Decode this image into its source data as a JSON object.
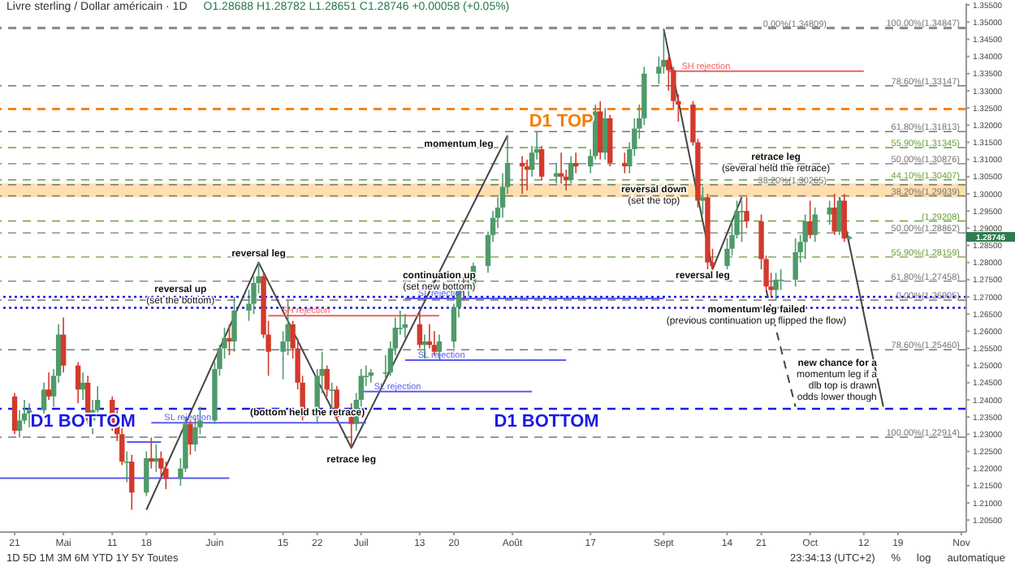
{
  "chart_data": {
    "type": "candlestick",
    "title": "Livre sterling / Dollar américain · 1D",
    "subtitle": "O1.28688 H1.28782 L1.28651 C1.28746 +0.00058 (+0.05%)",
    "colors": [
      "#d23a2c",
      "#4f9a6a",
      "#4f9a6a",
      "#4f9a6a",
      "#4f9a6a",
      "#d23a2c",
      "#4f9a6a",
      "#4f9a6a",
      "#d23a2c",
      "#d23a2c",
      "#4f9a6a",
      "#d23a2c",
      "#4f9a6a",
      "#4f9a6a",
      "#d23a2c",
      "#d23a2c",
      "#d23a2c",
      "#4f9a6a",
      "#d23a2c",
      "#4f9a6a",
      "#d23a2c",
      "#4f9a6a",
      "#d23a2c",
      "#d23a2c",
      "#4f9a6a",
      "#4f9a6a",
      "#d23a2c",
      "#4f9a6a",
      "#4f9a6a",
      "#4f9a6a",
      "#4f9a6a",
      "#4f9a6a",
      "#d23a2c",
      "#4f9a6a",
      "#4f9a6a",
      "#4f9a6a",
      "#4f9a6a",
      "#d23a2c",
      "#d23a2c",
      "#4f9a6a",
      "#4f9a6a",
      "#d23a2c",
      "#d23a2c",
      "#d23a2c",
      "#4f9a6a",
      "#4f9a6a",
      "#d23a2c",
      "#4f9a6a",
      "#d23a2c",
      "#d23a2c",
      "#4f9a6a",
      "#4f9a6a",
      "#4f9a6a",
      "#4f9a6a",
      "#4f9a6a",
      "#4f9a6a",
      "#4f9a6a",
      "#4f9a6a",
      "#4f9a6a",
      "#d23a2c",
      "#4f9a6a",
      "#d23a2c",
      "#d23a2c",
      "#4f9a6a",
      "#4f9a6a",
      "#4f9a6a",
      "#d23a2c",
      "#4f9a6a",
      "#4f9a6a",
      "#4f9a6a",
      "#4f9a6a",
      "#4f9a6a",
      "#4f9a6a",
      "#4f9a6a",
      "#d23a2c",
      "#d23a2c",
      "#4f9a6a",
      "#4f9a6a",
      "#d23a2c",
      "#4f9a6a",
      "#d23a2c",
      "#d23a2c",
      "#4f9a6a",
      "#d23a2c",
      "#4f9a6a",
      "#4f9a6a",
      "#d23a2c",
      "#4f9a6a",
      "#d23a2c",
      "#d23a2c",
      "#4f9a6a",
      "#4f9a6a",
      "#4f9a6a",
      "#4f9a6a",
      "#4f9a6a",
      "#4f9a6a",
      "#d23a2c",
      "#d23a2c",
      "#d23a2c",
      "#d23a2c",
      "#d23a2c",
      "#4f9a6a",
      "#d23a2c",
      "#d23a2c",
      "#4f9a6a",
      "#4f9a6a",
      "#4f9a6a",
      "#4f9a6a",
      "#d23a2c",
      "#d23a2c",
      "#d23a2c",
      "#d23a2c",
      "#4f9a6a",
      "#4f9a6a",
      "#4f9a6a",
      "#4f9a6a",
      "#4f9a6a",
      "#d23a2c",
      "#4f9a6a",
      "#4f9a6a",
      "#d23a2c",
      "#4f9a6a",
      "#d23a2c",
      "#4f9a6a"
    ],
    "xlim": [
      "--04-18",
      "--11-02"
    ],
    "xticks": [
      {
        "value": "--04-21",
        "label": "21"
      },
      {
        "value": "--05-01",
        "label": "Mai"
      },
      {
        "value": "--05-11",
        "label": "11"
      },
      {
        "value": "--05-18",
        "label": "18"
      },
      {
        "value": "--06-01",
        "label": "Juin"
      },
      {
        "value": "--06-15",
        "label": "15"
      },
      {
        "value": "--06-22",
        "label": "22"
      },
      {
        "value": "--07-01",
        "label": "Juil"
      },
      {
        "value": "--07-13",
        "label": "13"
      },
      {
        "value": "--07-20",
        "label": "20"
      },
      {
        "value": "--08-01",
        "label": "Août"
      },
      {
        "value": "--08-17",
        "label": "17"
      },
      {
        "value": "--09-01",
        "label": "Sept"
      },
      {
        "value": "--09-14",
        "label": "14"
      },
      {
        "value": "--09-21",
        "label": "21"
      },
      {
        "value": "--10-01",
        "label": "Oct"
      },
      {
        "value": "--10-12",
        "label": "12"
      },
      {
        "value": "--10-19",
        "label": "19"
      },
      {
        "value": "--11-01",
        "label": "Nov"
      }
    ],
    "ylim": [
      1.2015,
      1.3555
    ],
    "yticks": [
      {
        "value": 1.205,
        "label": "1.20500"
      },
      {
        "value": 1.21,
        "label": "1.21000"
      },
      {
        "value": 1.215,
        "label": "1.21500"
      },
      {
        "value": 1.22,
        "label": "1.22000"
      },
      {
        "value": 1.225,
        "label": "1.22500"
      },
      {
        "value": 1.23,
        "label": "1.23000"
      },
      {
        "value": 1.235,
        "label": "1.23500"
      },
      {
        "value": 1.24,
        "label": "1.24000"
      },
      {
        "value": 1.245,
        "label": "1.24500"
      },
      {
        "value": 1.25,
        "label": "1.25000"
      },
      {
        "value": 1.255,
        "label": "1.25500"
      },
      {
        "value": 1.26,
        "label": "1.26000"
      },
      {
        "value": 1.265,
        "label": "1.26500"
      },
      {
        "value": 1.27,
        "label": "1.27000"
      },
      {
        "value": 1.275,
        "label": "1.27500"
      },
      {
        "value": 1.28,
        "label": "1.28000"
      },
      {
        "value": 1.285,
        "label": "1.28500"
      },
      {
        "value": 1.29,
        "label": "1.29000"
      },
      {
        "value": 1.295,
        "label": "1.29500"
      },
      {
        "value": 1.3,
        "label": "1.30000"
      },
      {
        "value": 1.305,
        "label": "1.30500"
      },
      {
        "value": 1.31,
        "label": "1.31000"
      },
      {
        "value": 1.315,
        "label": "1.31500"
      },
      {
        "value": 1.32,
        "label": "1.32000"
      },
      {
        "value": 1.325,
        "label": "1.32500"
      },
      {
        "value": 1.33,
        "label": "1.33000"
      },
      {
        "value": 1.335,
        "label": "1.33500"
      },
      {
        "value": 1.34,
        "label": "1.34000"
      },
      {
        "value": 1.345,
        "label": "1.34500"
      },
      {
        "value": 1.35,
        "label": "1.35000"
      },
      {
        "value": 1.355,
        "label": "1.35500"
      }
    ],
    "x": [
      "--04-21",
      "--04-22",
      "--04-23",
      "--04-24",
      "--04-27",
      "--04-28",
      "--04-29",
      "--04-30",
      "--05-01",
      "--05-04",
      "--05-05",
      "--05-06",
      "--05-07",
      "--05-08",
      "--05-11",
      "--05-12",
      "--05-13",
      "--05-14",
      "--05-15",
      "--05-18",
      "--05-19",
      "--05-20",
      "--05-21",
      "--05-22",
      "--05-25",
      "--05-26",
      "--05-27",
      "--05-28",
      "--05-29",
      "--06-01",
      "--06-02",
      "--06-03",
      "--06-04",
      "--06-05",
      "--06-08",
      "--06-09",
      "--06-10",
      "--06-11",
      "--06-12",
      "--06-15",
      "--06-16",
      "--06-17",
      "--06-18",
      "--06-19",
      "--06-22",
      "--06-23",
      "--06-24",
      "--06-25",
      "--06-26",
      "--06-29",
      "--06-30",
      "--07-01",
      "--07-02",
      "--07-03",
      "--07-06",
      "--07-07",
      "--07-08",
      "--07-09",
      "--07-10",
      "--07-13",
      "--07-14",
      "--07-15",
      "--07-16",
      "--07-17",
      "--07-20",
      "--07-21",
      "--07-22",
      "--07-23",
      "--07-24",
      "--07-27",
      "--07-28",
      "--07-29",
      "--07-30",
      "--07-31",
      "--08-03",
      "--08-04",
      "--08-05",
      "--08-06",
      "--08-07",
      "--08-10",
      "--08-11",
      "--08-12",
      "--08-13",
      "--08-14",
      "--08-17",
      "--08-18",
      "--08-19",
      "--08-20",
      "--08-21",
      "--08-24",
      "--08-25",
      "--08-26",
      "--08-27",
      "--08-28",
      "--08-31",
      "--09-01",
      "--09-02",
      "--09-03",
      "--09-04",
      "--09-07",
      "--09-08",
      "--09-09",
      "--09-10",
      "--09-11",
      "--09-14",
      "--09-15",
      "--09-16",
      "--09-17",
      "--09-18",
      "--09-21",
      "--09-22",
      "--09-23",
      "--09-24",
      "--09-25",
      "--09-28",
      "--09-29",
      "--09-30",
      "--10-01",
      "--10-02",
      "--10-05",
      "--10-06",
      "--10-07",
      "--10-08",
      "--10-09"
    ],
    "ohlc": [
      [
        1.241,
        1.242,
        1.23,
        1.231
      ],
      [
        1.231,
        1.237,
        1.229,
        1.234
      ],
      [
        1.234,
        1.24,
        1.233,
        1.236
      ],
      [
        1.236,
        1.239,
        1.232,
        1.237
      ],
      [
        1.237,
        1.245,
        1.236,
        1.243
      ],
      [
        1.243,
        1.248,
        1.24,
        1.241
      ],
      [
        1.241,
        1.249,
        1.238,
        1.247
      ],
      [
        1.247,
        1.262,
        1.245,
        1.259
      ],
      [
        1.259,
        1.264,
        1.248,
        1.25
      ],
      [
        1.25,
        1.251,
        1.239,
        1.243
      ],
      [
        1.243,
        1.248,
        1.24,
        1.245
      ],
      [
        1.245,
        1.247,
        1.233,
        1.234
      ],
      [
        1.234,
        1.24,
        1.23,
        1.237
      ],
      [
        1.237,
        1.244,
        1.235,
        1.24
      ],
      [
        1.24,
        1.241,
        1.231,
        1.233
      ],
      [
        1.233,
        1.237,
        1.228,
        1.23
      ],
      [
        1.23,
        1.232,
        1.221,
        1.222
      ],
      [
        1.222,
        1.225,
        1.216,
        1.222
      ],
      [
        1.222,
        1.224,
        1.208,
        1.213
      ],
      [
        1.213,
        1.225,
        1.212,
        1.223
      ],
      [
        1.223,
        1.229,
        1.22,
        1.222
      ],
      [
        1.222,
        1.227,
        1.219,
        1.223
      ],
      [
        1.223,
        1.225,
        1.217,
        1.22
      ],
      [
        1.22,
        1.222,
        1.214,
        1.217
      ],
      [
        1.217,
        1.223,
        1.215,
        1.22
      ],
      [
        1.22,
        1.235,
        1.219,
        1.233
      ],
      [
        1.233,
        1.234,
        1.224,
        1.227
      ],
      [
        1.227,
        1.235,
        1.225,
        1.232
      ],
      [
        1.232,
        1.238,
        1.23,
        1.234
      ],
      [
        1.234,
        1.251,
        1.233,
        1.249
      ],
      [
        1.249,
        1.256,
        1.247,
        1.255
      ],
      [
        1.255,
        1.261,
        1.252,
        1.258
      ],
      [
        1.258,
        1.262,
        1.253,
        1.257
      ],
      [
        1.257,
        1.27,
        1.254,
        1.266
      ],
      [
        1.266,
        1.272,
        1.263,
        1.268
      ],
      [
        1.268,
        1.276,
        1.265,
        1.274
      ],
      [
        1.274,
        1.28,
        1.271,
        1.276
      ],
      [
        1.276,
        1.277,
        1.258,
        1.259
      ],
      [
        1.259,
        1.263,
        1.247,
        1.254
      ],
      [
        1.254,
        1.26,
        1.246,
        1.257
      ],
      [
        1.257,
        1.269,
        1.253,
        1.262
      ],
      [
        1.262,
        1.263,
        1.252,
        1.255
      ],
      [
        1.255,
        1.258,
        1.243,
        1.245
      ],
      [
        1.245,
        1.247,
        1.234,
        1.235
      ],
      [
        1.235,
        1.249,
        1.233,
        1.247
      ],
      [
        1.247,
        1.254,
        1.242,
        1.249
      ],
      [
        1.249,
        1.25,
        1.241,
        1.243
      ],
      [
        1.243,
        1.245,
        1.237,
        1.243
      ],
      [
        1.243,
        1.244,
        1.234,
        1.235
      ],
      [
        1.235,
        1.239,
        1.226,
        1.233
      ],
      [
        1.233,
        1.242,
        1.231,
        1.24
      ],
      [
        1.24,
        1.249,
        1.238,
        1.247
      ],
      [
        1.247,
        1.25,
        1.244,
        1.247
      ],
      [
        1.247,
        1.249,
        1.245,
        1.248
      ],
      [
        1.248,
        1.253,
        1.246,
        1.248
      ],
      [
        1.248,
        1.257,
        1.247,
        1.255
      ],
      [
        1.255,
        1.264,
        1.253,
        1.261
      ],
      [
        1.261,
        1.266,
        1.259,
        1.261
      ],
      [
        1.261,
        1.265,
        1.258,
        1.262
      ],
      [
        1.262,
        1.266,
        1.255,
        1.256
      ],
      [
        1.256,
        1.259,
        1.252,
        1.257
      ],
      [
        1.257,
        1.262,
        1.255,
        1.256
      ],
      [
        1.256,
        1.26,
        1.253,
        1.254
      ],
      [
        1.254,
        1.259,
        1.252,
        1.257
      ],
      [
        1.257,
        1.268,
        1.255,
        1.267
      ],
      [
        1.267,
        1.275,
        1.264,
        1.273
      ],
      [
        1.273,
        1.276,
        1.269,
        1.272
      ],
      [
        1.272,
        1.277,
        1.27,
        1.273
      ],
      [
        1.273,
        1.28,
        1.272,
        1.279
      ],
      [
        1.279,
        1.289,
        1.277,
        1.288
      ],
      [
        1.288,
        1.295,
        1.286,
        1.293
      ],
      [
        1.293,
        1.299,
        1.29,
        1.296
      ],
      [
        1.296,
        1.306,
        1.293,
        1.302
      ],
      [
        1.302,
        1.317,
        1.3,
        1.309
      ],
      [
        1.309,
        1.311,
        1.3,
        1.308
      ],
      [
        1.308,
        1.31,
        1.301,
        1.307
      ],
      [
        1.307,
        1.314,
        1.305,
        1.312
      ],
      [
        1.312,
        1.318,
        1.31,
        1.313
      ],
      [
        1.313,
        1.314,
        1.304,
        1.305
      ],
      [
        1.305,
        1.309,
        1.303,
        1.306
      ],
      [
        1.306,
        1.312,
        1.303,
        1.305
      ],
      [
        1.305,
        1.307,
        1.301,
        1.304
      ],
      [
        1.304,
        1.311,
        1.303,
        1.309
      ],
      [
        1.309,
        1.312,
        1.306,
        1.308
      ],
      [
        1.308,
        1.313,
        1.306,
        1.311
      ],
      [
        1.311,
        1.326,
        1.31,
        1.324
      ],
      [
        1.324,
        1.327,
        1.31,
        1.312
      ],
      [
        1.312,
        1.325,
        1.31,
        1.322
      ],
      [
        1.322,
        1.323,
        1.308,
        1.309
      ],
      [
        1.309,
        1.312,
        1.306,
        1.308
      ],
      [
        1.308,
        1.315,
        1.306,
        1.313
      ],
      [
        1.313,
        1.322,
        1.311,
        1.319
      ],
      [
        1.319,
        1.326,
        1.316,
        1.322
      ],
      [
        1.322,
        1.337,
        1.32,
        1.335
      ],
      [
        1.335,
        1.34,
        1.332,
        1.337
      ],
      [
        1.337,
        1.348,
        1.335,
        1.339
      ],
      [
        1.339,
        1.34,
        1.33,
        1.336
      ],
      [
        1.336,
        1.337,
        1.325,
        1.327
      ],
      [
        1.327,
        1.329,
        1.321,
        1.326
      ],
      [
        1.326,
        1.327,
        1.314,
        1.315
      ],
      [
        1.315,
        1.316,
        1.296,
        1.298
      ],
      [
        1.298,
        1.302,
        1.294,
        1.299
      ],
      [
        1.299,
        1.3,
        1.278,
        1.28
      ],
      [
        1.28,
        1.284,
        1.277,
        1.279
      ],
      [
        1.279,
        1.287,
        1.278,
        1.284
      ],
      [
        1.284,
        1.292,
        1.282,
        1.288
      ],
      [
        1.288,
        1.298,
        1.287,
        1.295
      ],
      [
        1.295,
        1.298,
        1.286,
        1.295
      ],
      [
        1.295,
        1.299,
        1.29,
        1.292
      ],
      [
        1.292,
        1.294,
        1.278,
        1.281
      ],
      [
        1.281,
        1.282,
        1.272,
        1.273
      ],
      [
        1.273,
        1.277,
        1.27,
        1.272
      ],
      [
        1.272,
        1.277,
        1.269,
        1.275
      ],
      [
        1.275,
        1.278,
        1.272,
        1.275
      ],
      [
        1.275,
        1.287,
        1.273,
        1.283
      ],
      [
        1.283,
        1.288,
        1.28,
        1.286
      ],
      [
        1.286,
        1.294,
        1.281,
        1.292
      ],
      [
        1.292,
        1.298,
        1.287,
        1.288
      ],
      [
        1.288,
        1.296,
        1.286,
        1.294
      ],
      [
        1.294,
        1.298,
        1.291,
        1.296
      ],
      [
        1.296,
        1.3,
        1.288,
        1.289
      ],
      [
        1.289,
        1.299,
        1.288,
        1.298
      ],
      [
        1.298,
        1.3,
        1.286,
        1.287
      ],
      [
        1.28688,
        1.28782,
        1.28651,
        1.28746
      ]
    ],
    "series": [
      {
        "type": "line",
        "color": "#444444",
        "x": [
          "--05-18",
          "--06-10",
          "--06-29",
          "--07-31"
        ],
        "values": [
          1.208,
          1.28,
          1.226,
          1.317
        ]
      },
      {
        "type": "line",
        "color": "#444444",
        "x": [
          "--09-01",
          "--09-11",
          "--09-17"
        ],
        "values": [
          1.3481,
          1.278,
          1.299
        ]
      },
      {
        "type": "line",
        "color": "#444444",
        "line_style": "dashed",
        "x": [
          "--09-22",
          "--09-28"
        ],
        "values": [
          1.272,
          1.238
        ]
      },
      {
        "type": "line",
        "color": "#444444",
        "x": [
          "--10-07",
          "--10-16"
        ],
        "values": [
          1.299,
          1.238
        ]
      },
      {
        "type": "line",
        "name": "SH rejection",
        "color": "#f06060",
        "x": [
          "--09-02",
          "--10-12"
        ],
        "values": [
          1.3357,
          1.3357
        ]
      },
      {
        "type": "line",
        "name": "SH rejection",
        "color": "#f06060",
        "x": [
          "--06-12",
          "--07-17"
        ],
        "values": [
          1.2645,
          1.2645
        ]
      },
      {
        "type": "line",
        "name": "SL rejection",
        "color": "#5b5bf0",
        "x": [
          "--07-10",
          "--09-01"
        ],
        "values": [
          1.2695,
          1.2695
        ]
      },
      {
        "type": "line",
        "name": "SL rejection",
        "color": "#5b5bf0",
        "x": [
          "--07-10",
          "--08-12"
        ],
        "values": [
          1.2516,
          1.2516
        ]
      },
      {
        "type": "line",
        "name": "SL rejection",
        "color": "#5b5bf0",
        "x": [
          "--07-01",
          "--08-05"
        ],
        "values": [
          1.2424,
          1.2424
        ]
      },
      {
        "type": "line",
        "name": "SL rejection",
        "color": "#5b5bf0",
        "x": [
          "--05-19",
          "--07-02"
        ],
        "values": [
          1.2333,
          1.2333
        ]
      },
      {
        "type": "line",
        "color": "#5b5bf0",
        "x": [
          "--05-14",
          "--05-21"
        ],
        "values": [
          1.2277,
          1.2277
        ]
      },
      {
        "type": "line",
        "color": "#5b5bf0",
        "x": [
          "--04-18",
          "--06-04"
        ],
        "values": [
          1.2172,
          1.2172
        ]
      }
    ],
    "ref_lines": [
      {
        "axis": "y",
        "value": 1.3247,
        "color": "#f57c00",
        "line_style": "dashed"
      },
      {
        "axis": "y",
        "value": 1.2374,
        "color": "#1a1ae6",
        "line_style": "dashed"
      },
      {
        "axis": "y",
        "value": 1.27,
        "color": "#1a1ae6",
        "line_style": "dotted"
      },
      {
        "axis": "y",
        "value": 1.2668,
        "color": "#1a1ae6",
        "line_style": "dotted"
      },
      {
        "axis": "y",
        "value": 1.34847,
        "label": "100.00%(1.34847)",
        "color": "#777777",
        "line_style": "dashed"
      },
      {
        "axis": "y",
        "value": 1.33147,
        "label": "78.60%(1.33147)",
        "color": "#777777",
        "line_style": "dashed"
      },
      {
        "axis": "y",
        "value": 1.31813,
        "label": "61.80%(1.31813)",
        "color": "#777777",
        "line_style": "dashed"
      },
      {
        "axis": "y",
        "value": 1.31345,
        "label": "55.90%(1.31345)",
        "color": "#6a9f3a",
        "line_style": "dashed"
      },
      {
        "axis": "y",
        "value": 1.30876,
        "label": "50.00%(1.30876)",
        "color": "#777777",
        "line_style": "dashed"
      },
      {
        "axis": "y",
        "value": 1.30407,
        "label": "44.10%(1.30407)",
        "color": "#6a9f3a",
        "line_style": "dashed"
      },
      {
        "axis": "y",
        "value": 1.29939,
        "label": "38.20%(1.29939)",
        "color": "#777777",
        "line_style": "dashed"
      },
      {
        "axis": "y",
        "value": 1.26905,
        "label": "0.00%(1.26905)",
        "color": "#777777",
        "line_style": "dashed"
      },
      {
        "axis": "y",
        "value": 1.34809,
        "label": "0.00%(1.34809)",
        "color": "#777777",
        "line_style": "dashed"
      },
      {
        "axis": "y",
        "value": 1.30265,
        "label": "38.20%(1.30265)",
        "color": "#777777",
        "line_style": "dashed"
      },
      {
        "axis": "y",
        "value": 1.29208,
        "label": "(1.29208)",
        "color": "#6a9f3a",
        "line_style": "dashed"
      },
      {
        "axis": "y",
        "value": 1.28862,
        "label": "50.00%(1.28862)",
        "color": "#777777",
        "line_style": "dashed"
      },
      {
        "axis": "y",
        "value": 1.28159,
        "label": "55.90%(1.28159)",
        "color": "#6a9f3a",
        "line_style": "dashed"
      },
      {
        "axis": "y",
        "value": 1.27458,
        "label": "61.80%(1.27458)",
        "color": "#777777",
        "line_style": "dashed"
      },
      {
        "axis": "y",
        "value": 1.2546,
        "label": "78.60%(1.25460)",
        "color": "#777777",
        "line_style": "dashed"
      },
      {
        "axis": "y",
        "value": 1.22914,
        "label": "100.00%(1.22914)",
        "color": "#777777",
        "line_style": "dashed"
      }
    ],
    "bands": [
      {
        "axis": "y",
        "from": 1.299,
        "to": 1.303,
        "color": "#ffb74d"
      }
    ],
    "annotations": [
      {
        "text": "momentum leg",
        "x": "--07-21",
        "y": 1.3136
      },
      {
        "text": "reversal leg",
        "x": "--06-10",
        "y": 1.28
      },
      {
        "text": "reversal up\n(set the bottom)",
        "x": "--05-25",
        "y": 1.2715
      },
      {
        "text": "continuation up\n(set new bottom)",
        "x": "--07-17",
        "y": 1.2755
      },
      {
        "text": "(bottom held the retrace)",
        "x": "--06-20",
        "y": 1.2355
      },
      {
        "text": "retrace leg",
        "x": "--06-29",
        "y": 1.226
      },
      {
        "text": "D1 BOTTOM",
        "x": "--05-05",
        "y": 1.2374
      },
      {
        "text": "D1 BOTTOM",
        "x": "--08-08",
        "y": 1.2374
      },
      {
        "text": "D1 TOP",
        "x": "--08-11",
        "y": 1.3247
      },
      {
        "text": "reversal down\n(set the top)",
        "x": "--08-30",
        "y": 1.3005
      },
      {
        "text": "retrace leg\n(several held the retrace)",
        "x": "--09-24",
        "y": 1.31
      },
      {
        "text": "reversal leg",
        "x": "--09-09",
        "y": 1.2755
      },
      {
        "text": "momentum leg failed\n(previous continuation up flipped the flow)",
        "x": "--09-20",
        "y": 1.2655
      },
      {
        "text": "new chance for a\nmomentum leg if a\ndlb top is drawn\nodds lower though",
        "x": "--10-16",
        "y": 1.238
      },
      {
        "text": "1.28746",
        "x": "--11-02",
        "y": 1.28746
      },
      "1D 5D 1M 3M 6M YTD 1Y 5Y Toutes",
      "23:34:13 (UTC+2)",
      "%",
      "log",
      "automatique"
    ]
  }
}
